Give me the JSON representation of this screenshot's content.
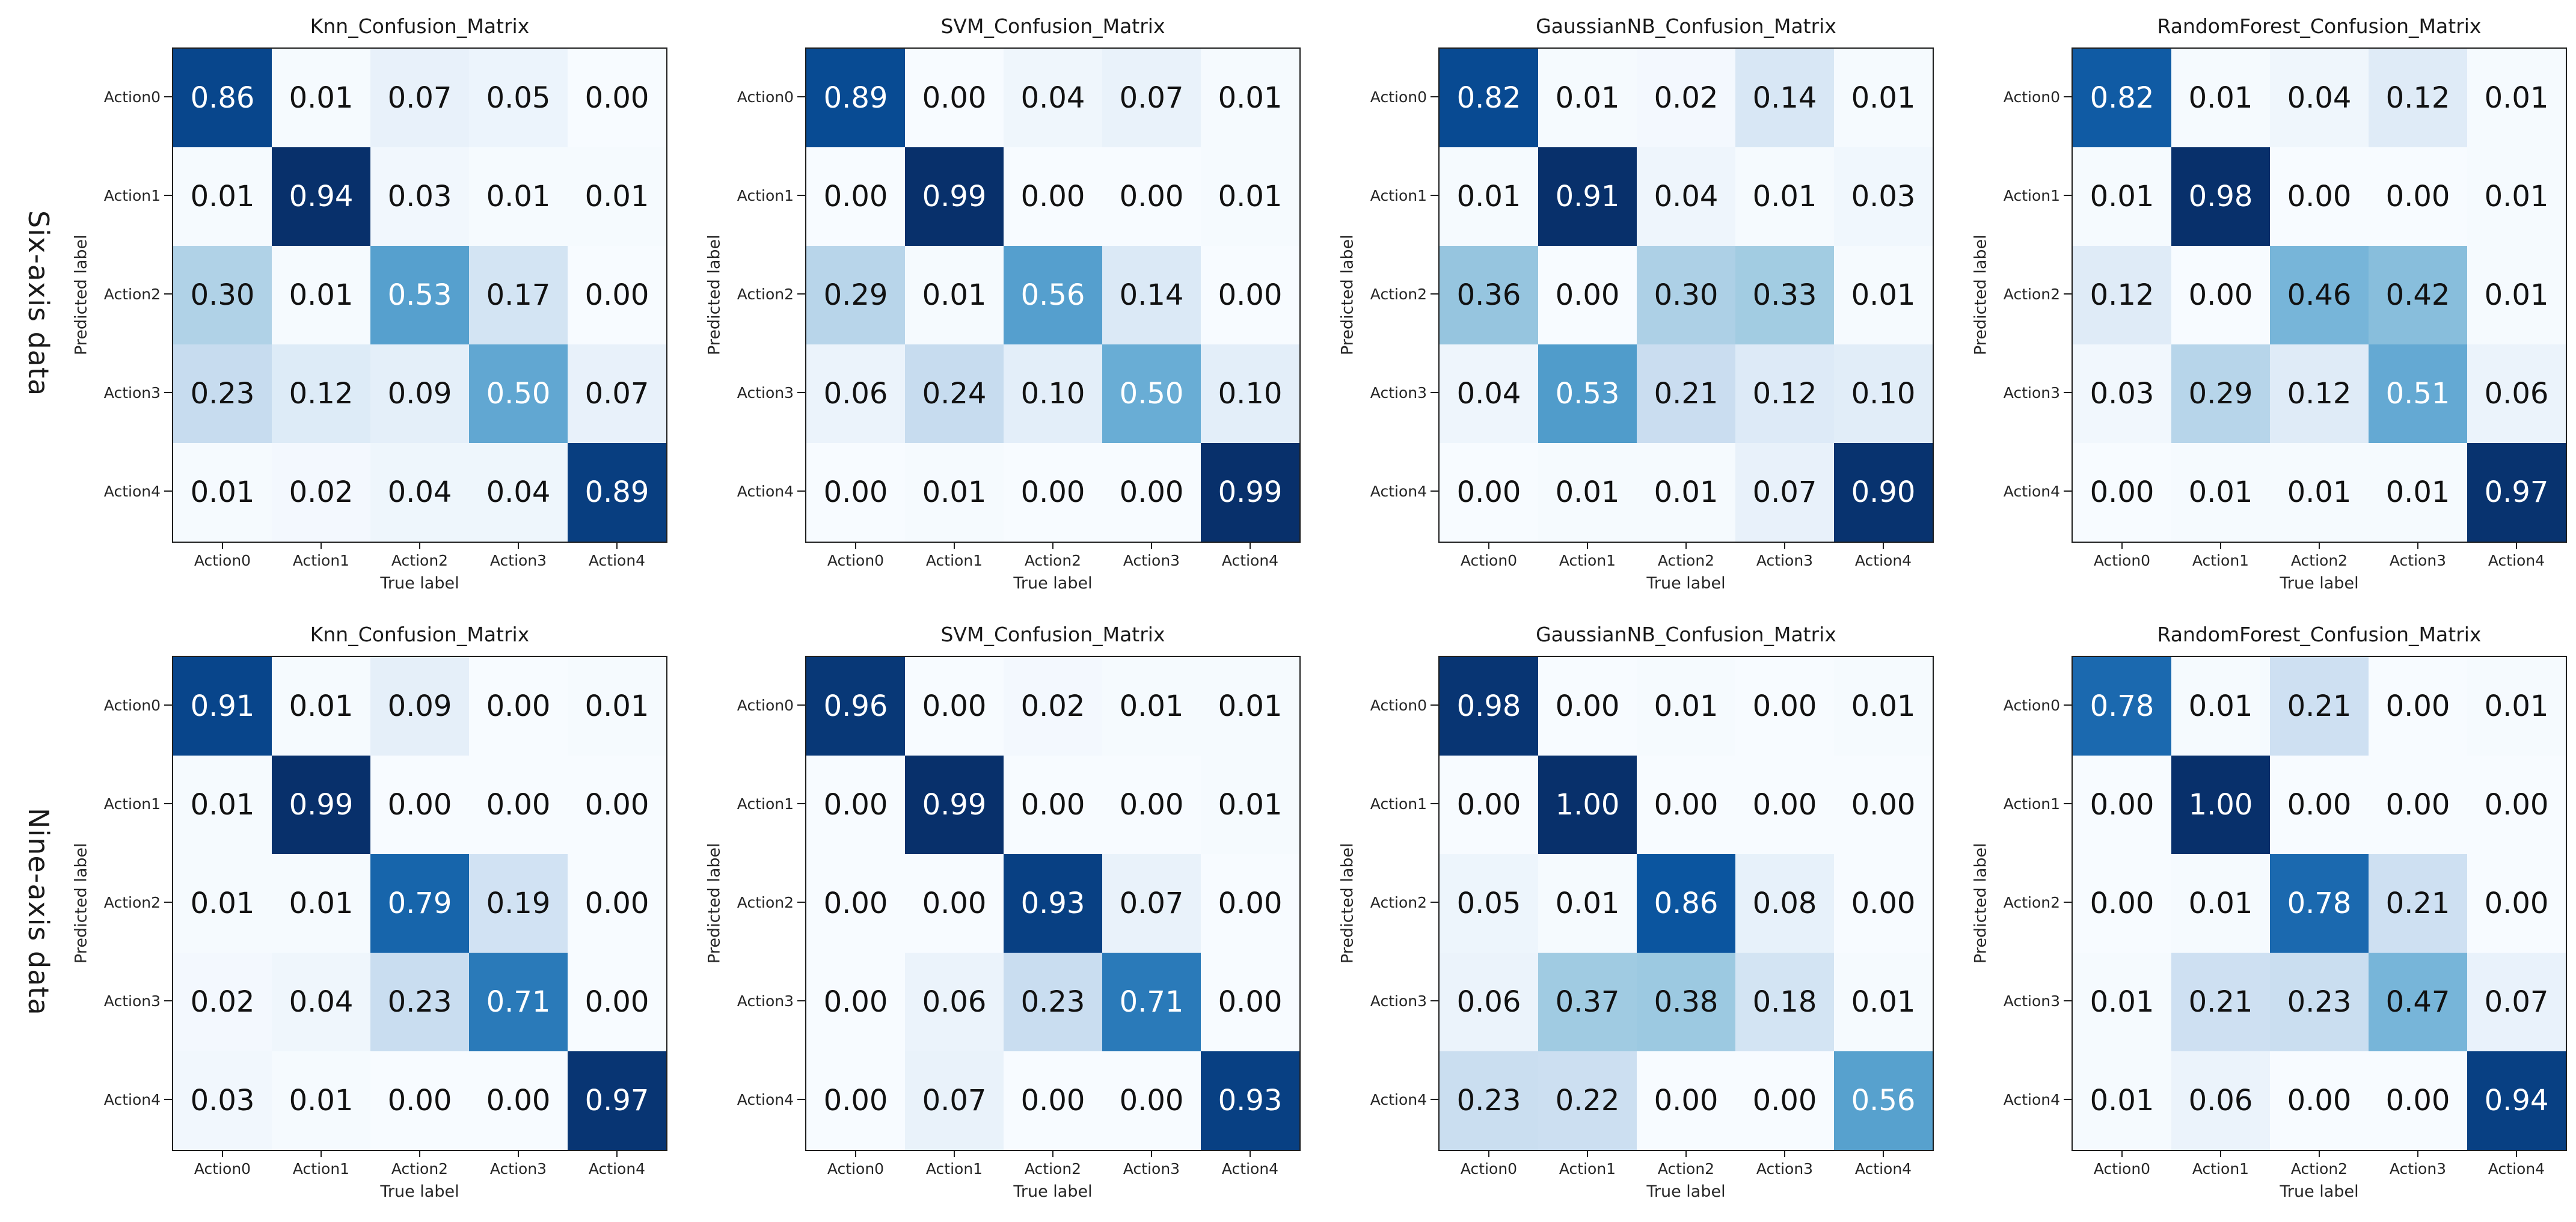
{
  "figure": {
    "background": "#ffffff",
    "rows": [
      {
        "label": "Six-axis data"
      },
      {
        "label": "Nine-axis data"
      }
    ]
  },
  "shared": {
    "x_axis_label": "True label",
    "y_axis_label": "Predicted label",
    "classes": [
      "Action0",
      "Action1",
      "Action2",
      "Action3",
      "Action4"
    ]
  },
  "colors": {
    "colormap": "Blues",
    "cmap_low": "#f7fbff",
    "cmap_high": "#08306b",
    "text_dark": "#111111",
    "text_light": "#ffffff",
    "spine": "#1f1f1f",
    "background": "#ffffff"
  },
  "chart_data": [
    {
      "type": "heatmap",
      "row_group": "Six-axis data",
      "title": "Knn_Confusion_Matrix",
      "xlabel": "True label",
      "ylabel": "Predicted label",
      "x_categories": [
        "Action0",
        "Action1",
        "Action2",
        "Action3",
        "Action4"
      ],
      "y_categories": [
        "Action0",
        "Action1",
        "Action2",
        "Action3",
        "Action4"
      ],
      "value_range": [
        0,
        1
      ],
      "colormap": "Blues",
      "values": [
        [
          0.86,
          0.01,
          0.07,
          0.05,
          0.0
        ],
        [
          0.01,
          0.94,
          0.03,
          0.01,
          0.01
        ],
        [
          0.3,
          0.01,
          0.53,
          0.17,
          0.0
        ],
        [
          0.23,
          0.12,
          0.09,
          0.5,
          0.07
        ],
        [
          0.01,
          0.02,
          0.04,
          0.04,
          0.89
        ]
      ]
    },
    {
      "type": "heatmap",
      "row_group": "Six-axis data",
      "title": "SVM_Confusion_Matrix",
      "xlabel": "True label",
      "ylabel": "Predicted label",
      "x_categories": [
        "Action0",
        "Action1",
        "Action2",
        "Action3",
        "Action4"
      ],
      "y_categories": [
        "Action0",
        "Action1",
        "Action2",
        "Action3",
        "Action4"
      ],
      "value_range": [
        0,
        1
      ],
      "colormap": "Blues",
      "values": [
        [
          0.89,
          0.0,
          0.04,
          0.07,
          0.01
        ],
        [
          0.0,
          0.99,
          0.0,
          0.0,
          0.01
        ],
        [
          0.29,
          0.01,
          0.56,
          0.14,
          0.0
        ],
        [
          0.06,
          0.24,
          0.1,
          0.5,
          0.1
        ],
        [
          0.0,
          0.01,
          0.0,
          0.0,
          0.99
        ]
      ]
    },
    {
      "type": "heatmap",
      "row_group": "Six-axis data",
      "title": "GaussianNB_Confusion_Matrix",
      "xlabel": "True label",
      "ylabel": "Predicted label",
      "x_categories": [
        "Action0",
        "Action1",
        "Action2",
        "Action3",
        "Action4"
      ],
      "y_categories": [
        "Action0",
        "Action1",
        "Action2",
        "Action3",
        "Action4"
      ],
      "value_range": [
        0,
        1
      ],
      "colormap": "Blues",
      "values": [
        [
          0.82,
          0.01,
          0.02,
          0.14,
          0.01
        ],
        [
          0.01,
          0.91,
          0.04,
          0.01,
          0.03
        ],
        [
          0.36,
          0.0,
          0.3,
          0.33,
          0.01
        ],
        [
          0.04,
          0.53,
          0.21,
          0.12,
          0.1
        ],
        [
          0.0,
          0.01,
          0.01,
          0.07,
          0.9
        ]
      ]
    },
    {
      "type": "heatmap",
      "row_group": "Six-axis data",
      "title": "RandomForest_Confusion_Matrix",
      "xlabel": "True label",
      "ylabel": "Predicted label",
      "x_categories": [
        "Action0",
        "Action1",
        "Action2",
        "Action3",
        "Action4"
      ],
      "y_categories": [
        "Action0",
        "Action1",
        "Action2",
        "Action3",
        "Action4"
      ],
      "value_range": [
        0,
        1
      ],
      "colormap": "Blues",
      "values": [
        [
          0.82,
          0.01,
          0.04,
          0.12,
          0.01
        ],
        [
          0.01,
          0.98,
          0.0,
          0.0,
          0.01
        ],
        [
          0.12,
          0.0,
          0.46,
          0.42,
          0.01
        ],
        [
          0.03,
          0.29,
          0.12,
          0.51,
          0.06
        ],
        [
          0.0,
          0.01,
          0.01,
          0.01,
          0.97
        ]
      ]
    },
    {
      "type": "heatmap",
      "row_group": "Nine-axis data",
      "title": "Knn_Confusion_Matrix",
      "xlabel": "True label",
      "ylabel": "Predicted label",
      "x_categories": [
        "Action0",
        "Action1",
        "Action2",
        "Action3",
        "Action4"
      ],
      "y_categories": [
        "Action0",
        "Action1",
        "Action2",
        "Action3",
        "Action4"
      ],
      "value_range": [
        0,
        1
      ],
      "colormap": "Blues",
      "values": [
        [
          0.91,
          0.01,
          0.09,
          0.0,
          0.01
        ],
        [
          0.01,
          0.99,
          0.0,
          0.0,
          0.0
        ],
        [
          0.01,
          0.01,
          0.79,
          0.19,
          0.0
        ],
        [
          0.02,
          0.04,
          0.23,
          0.71,
          0.0
        ],
        [
          0.03,
          0.01,
          0.0,
          0.0,
          0.97
        ]
      ]
    },
    {
      "type": "heatmap",
      "row_group": "Nine-axis data",
      "title": "SVM_Confusion_Matrix",
      "xlabel": "True label",
      "ylabel": "Predicted label",
      "x_categories": [
        "Action0",
        "Action1",
        "Action2",
        "Action3",
        "Action4"
      ],
      "y_categories": [
        "Action0",
        "Action1",
        "Action2",
        "Action3",
        "Action4"
      ],
      "value_range": [
        0,
        1
      ],
      "colormap": "Blues",
      "values": [
        [
          0.96,
          0.0,
          0.02,
          0.01,
          0.01
        ],
        [
          0.0,
          0.99,
          0.0,
          0.0,
          0.01
        ],
        [
          0.0,
          0.0,
          0.93,
          0.07,
          0.0
        ],
        [
          0.0,
          0.06,
          0.23,
          0.71,
          0.0
        ],
        [
          0.0,
          0.07,
          0.0,
          0.0,
          0.93
        ]
      ]
    },
    {
      "type": "heatmap",
      "row_group": "Nine-axis data",
      "title": "GaussianNB_Confusion_Matrix",
      "xlabel": "True label",
      "ylabel": "Predicted label",
      "x_categories": [
        "Action0",
        "Action1",
        "Action2",
        "Action3",
        "Action4"
      ],
      "y_categories": [
        "Action0",
        "Action1",
        "Action2",
        "Action3",
        "Action4"
      ],
      "value_range": [
        0,
        1
      ],
      "colormap": "Blues",
      "values": [
        [
          0.98,
          0.0,
          0.01,
          0.0,
          0.01
        ],
        [
          0.0,
          1.0,
          0.0,
          0.0,
          0.0
        ],
        [
          0.05,
          0.01,
          0.86,
          0.08,
          0.0
        ],
        [
          0.06,
          0.37,
          0.38,
          0.18,
          0.01
        ],
        [
          0.23,
          0.22,
          0.0,
          0.0,
          0.56
        ]
      ]
    },
    {
      "type": "heatmap",
      "row_group": "Nine-axis data",
      "title": "RandomForest_Confusion_Matrix",
      "xlabel": "True label",
      "ylabel": "Predicted label",
      "x_categories": [
        "Action0",
        "Action1",
        "Action2",
        "Action3",
        "Action4"
      ],
      "y_categories": [
        "Action0",
        "Action1",
        "Action2",
        "Action3",
        "Action4"
      ],
      "value_range": [
        0,
        1
      ],
      "colormap": "Blues",
      "values": [
        [
          0.78,
          0.01,
          0.21,
          0.0,
          0.01
        ],
        [
          0.0,
          1.0,
          0.0,
          0.0,
          0.0
        ],
        [
          0.0,
          0.01,
          0.78,
          0.21,
          0.0
        ],
        [
          0.01,
          0.21,
          0.23,
          0.47,
          0.07
        ],
        [
          0.01,
          0.06,
          0.0,
          0.0,
          0.94
        ]
      ]
    }
  ]
}
